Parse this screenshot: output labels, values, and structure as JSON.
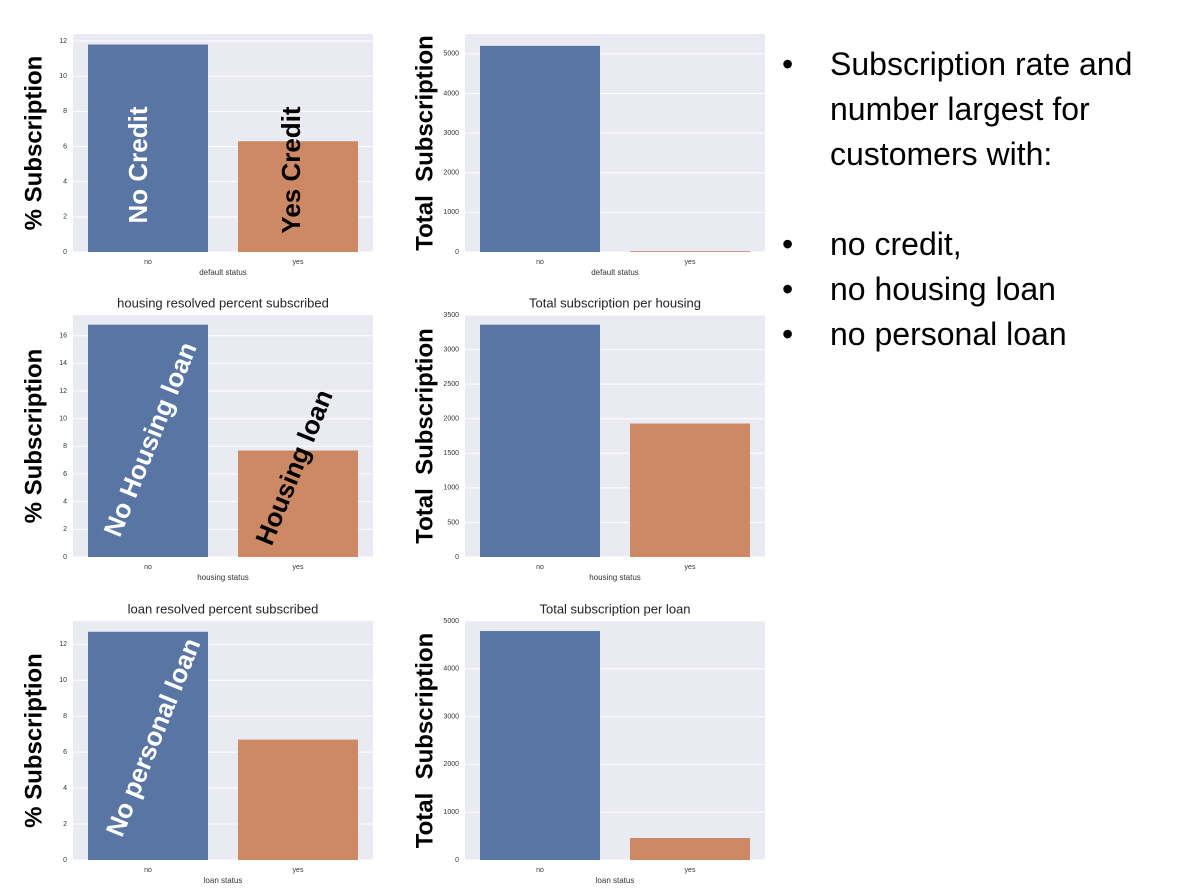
{
  "chart_data": [
    {
      "type": "bar",
      "ylabel": "% Subscription",
      "xlabel": "default status",
      "categories": [
        "no",
        "yes"
      ],
      "values": [
        11.8,
        6.3
      ],
      "colors": [
        "#5975a4",
        "#cc8963"
      ],
      "ylim": [
        0,
        12.4
      ],
      "yticks": [
        0,
        2,
        4,
        6,
        8,
        10,
        12
      ],
      "grid": true,
      "annotations": [
        "No Credit",
        "Yes Credit"
      ]
    },
    {
      "type": "bar",
      "ylabel": "Total  Subscription",
      "xlabel": "default status",
      "categories": [
        "no",
        "yes"
      ],
      "values": [
        5200,
        20
      ],
      "colors": [
        "#5975a4",
        "#cc8963"
      ],
      "ylim": [
        0,
        5500
      ],
      "yticks": [
        0,
        1000,
        2000,
        3000,
        4000,
        5000
      ],
      "grid": true
    },
    {
      "type": "bar",
      "title": "housing resolved percent subscribed",
      "ylabel": "% Subscription",
      "xlabel": "housing status",
      "categories": [
        "no",
        "yes"
      ],
      "values": [
        16.8,
        7.7
      ],
      "colors": [
        "#5975a4",
        "#cc8963"
      ],
      "ylim": [
        0,
        17.5
      ],
      "yticks": [
        0,
        2,
        4,
        6,
        8,
        10,
        12,
        14,
        16
      ],
      "grid": true,
      "annotations": [
        "No Housing loan",
        "Housing loan"
      ]
    },
    {
      "type": "bar",
      "title": "Total subscription per housing",
      "ylabel": "Total  Subscription",
      "xlabel": "housing status",
      "categories": [
        "no",
        "yes"
      ],
      "values": [
        3360,
        1930
      ],
      "colors": [
        "#5975a4",
        "#cc8963"
      ],
      "ylim": [
        0,
        3500
      ],
      "yticks": [
        0,
        500,
        1000,
        1500,
        2000,
        2500,
        3000,
        3500
      ],
      "grid": true
    },
    {
      "type": "bar",
      "title": "loan resolved percent subscribed",
      "ylabel": "% Subscription",
      "xlabel": "loan status",
      "categories": [
        "no",
        "yes"
      ],
      "values": [
        12.7,
        6.7
      ],
      "colors": [
        "#5975a4",
        "#cc8963"
      ],
      "ylim": [
        0,
        13.3
      ],
      "yticks": [
        0,
        2,
        4,
        6,
        8,
        10,
        12
      ],
      "grid": true,
      "annotations": [
        "No personal loan"
      ]
    },
    {
      "type": "bar",
      "title": "Total subscription per loan",
      "ylabel": "Total  Subscription",
      "xlabel": "loan status",
      "categories": [
        "no",
        "yes"
      ],
      "values": [
        4790,
        460
      ],
      "colors": [
        "#5975a4",
        "#cc8963"
      ],
      "ylim": [
        0,
        5000
      ],
      "yticks": [
        0,
        1000,
        2000,
        3000,
        4000,
        5000
      ],
      "grid": true
    }
  ],
  "bullets": {
    "heading": "Subscription rate and number largest for customers with:",
    "items": [
      "no credit,",
      "no housing loan",
      "no personal loan"
    ]
  }
}
